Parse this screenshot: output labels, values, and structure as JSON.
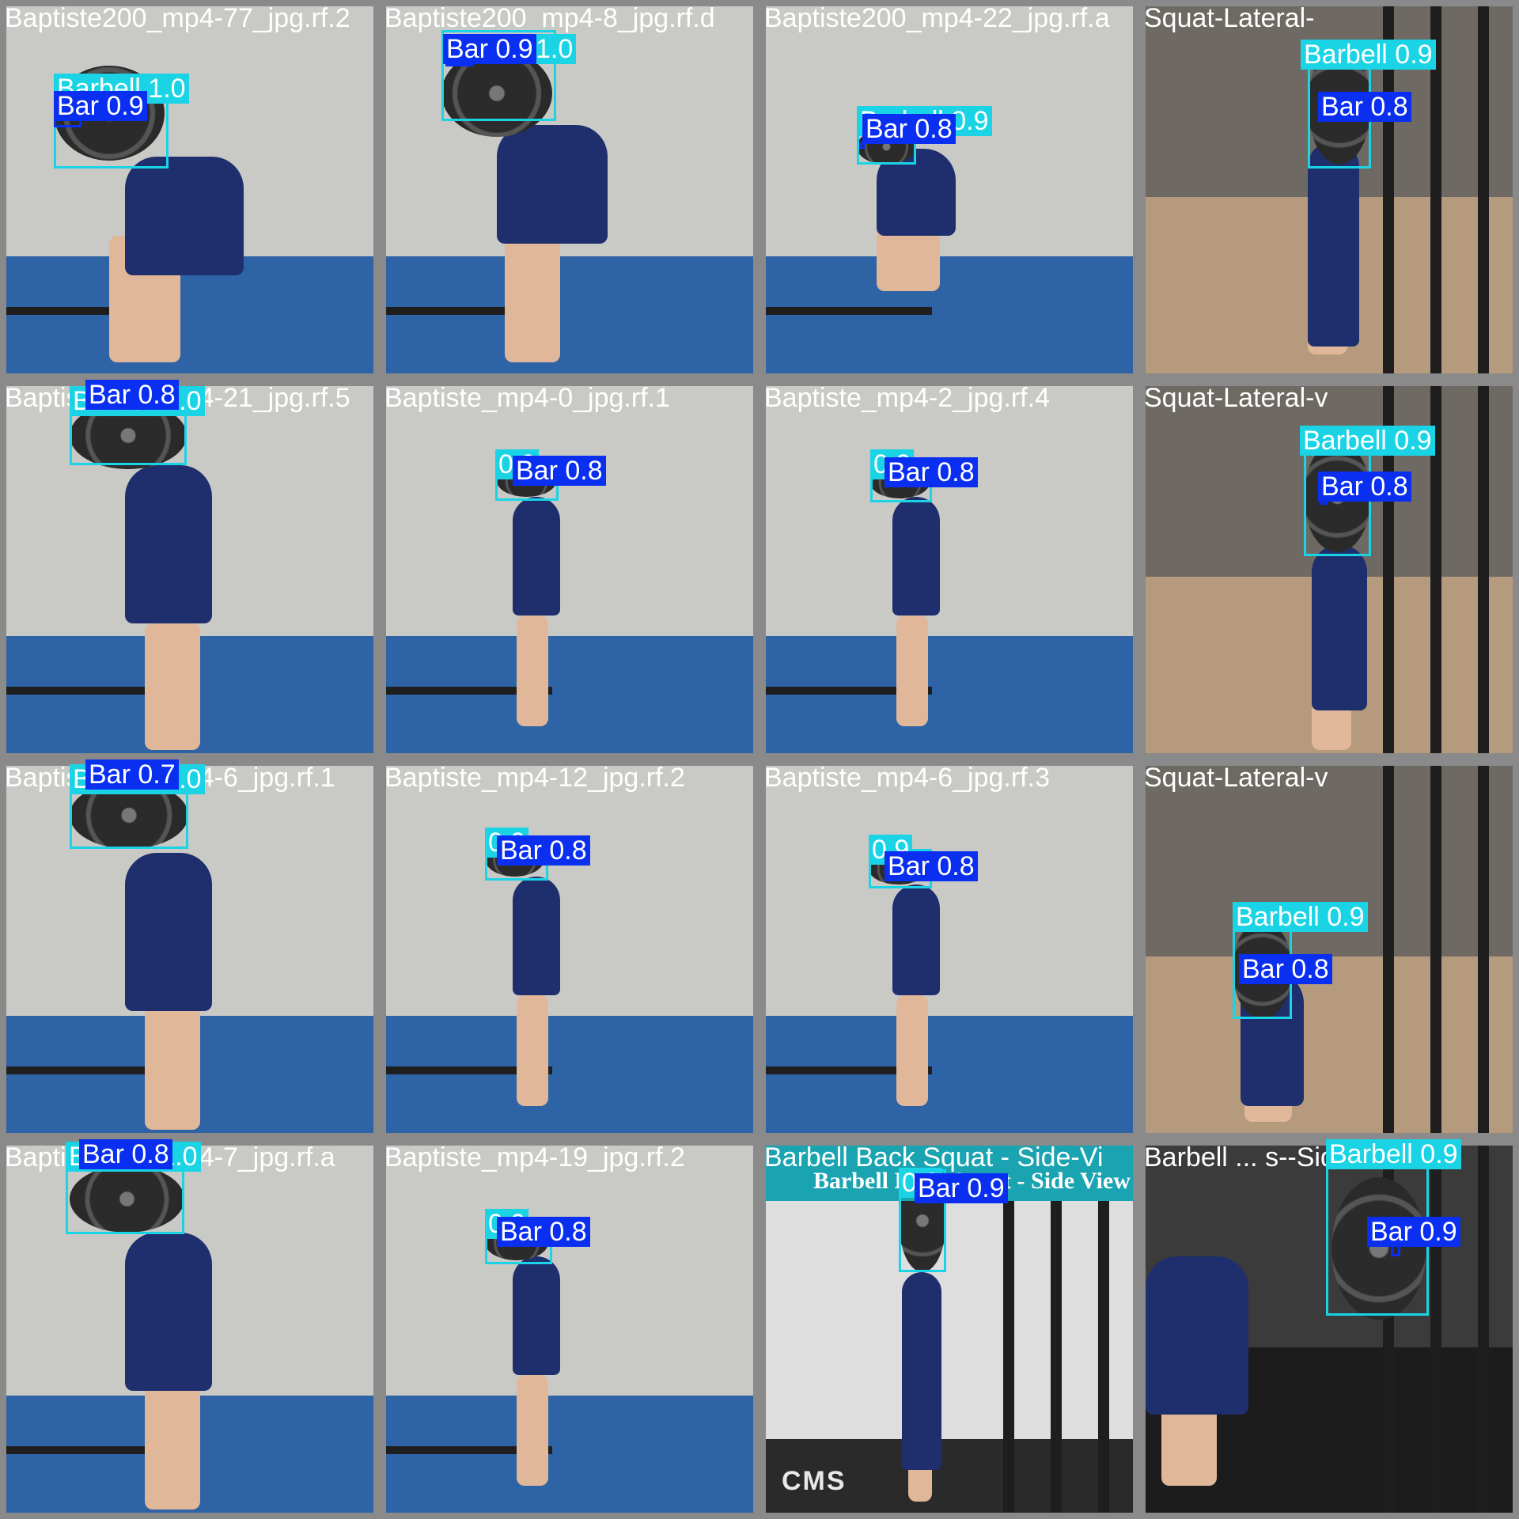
{
  "colors": {
    "barbell_box": "#1ad4e6",
    "bar_box": "#0a2ff0",
    "label_text": "#ffffff",
    "tile_border": "#8a8a8a"
  },
  "tiles": [
    {
      "filename": "Baptiste200_mp4-77_jpg.rf.2",
      "scene": "office-blue-floor",
      "detections": [
        {
          "label": "Barbell 1.0"
        },
        {
          "label": "Bar 0.9"
        }
      ]
    },
    {
      "filename": "Baptiste200_mp4-8_jpg.rf.d",
      "scene": "office-blue-floor",
      "detections": [
        {
          "label": "1.0"
        },
        {
          "label": "Bar 0.9"
        }
      ]
    },
    {
      "filename": "Baptiste200_mp4-22_jpg.rf.a",
      "scene": "office-blue-floor",
      "detections": [
        {
          "label": "Barbell 0.9"
        },
        {
          "label": "Bar 0.8"
        }
      ]
    },
    {
      "filename": "Squat-Lateral-",
      "scene": "gym-tan-floor",
      "detections": [
        {
          "label": "Barbell 0.9"
        },
        {
          "label": "Bar 0.8"
        }
      ]
    },
    {
      "filename": "Baptiste200_mp4-21_jpg.rf.5",
      "scene": "office-blue-floor",
      "detections": [
        {
          "label": "Barbell 1.0"
        },
        {
          "label": "Bar 0.8"
        }
      ]
    },
    {
      "filename": "Baptiste_mp4-0_jpg.rf.1",
      "scene": "office-blue-floor",
      "detections": [
        {
          "label": "0.9"
        },
        {
          "label": "Bar 0.8"
        }
      ]
    },
    {
      "filename": "Baptiste_mp4-2_jpg.rf.4",
      "scene": "office-blue-floor",
      "detections": [
        {
          "label": "0.9"
        },
        {
          "label": "Bar 0.8"
        }
      ]
    },
    {
      "filename": "Squat-Lateral-v",
      "scene": "gym-tan-floor",
      "detections": [
        {
          "label": "Barbell 0.9"
        },
        {
          "label": "Bar 0.8"
        }
      ]
    },
    {
      "filename": "Baptiste200_mp4-6_jpg.rf.1",
      "scene": "office-blue-floor",
      "detections": [
        {
          "label": "Barbell 1.0"
        },
        {
          "label": "Bar 0.7"
        }
      ]
    },
    {
      "filename": "Baptiste_mp4-12_jpg.rf.2",
      "scene": "office-blue-floor",
      "detections": [
        {
          "label": "0.9"
        },
        {
          "label": "Bar 0.8"
        }
      ]
    },
    {
      "filename": "Baptiste_mp4-6_jpg.rf.3",
      "scene": "office-blue-floor",
      "detections": [
        {
          "label": "0.9"
        },
        {
          "label": "Bar 0.8"
        }
      ]
    },
    {
      "filename": "Squat-Lateral-v",
      "scene": "gym-tan-floor",
      "detections": [
        {
          "label": "Barbell 0.9"
        },
        {
          "label": "Bar 0.8"
        }
      ]
    },
    {
      "filename": "Baptiste200_mp4-7_jpg.rf.a",
      "scene": "office-blue-floor",
      "detections": [
        {
          "label": "Barbell 1.0"
        },
        {
          "label": "Bar 0.8"
        }
      ]
    },
    {
      "filename": "Baptiste_mp4-19_jpg.rf.2",
      "scene": "office-blue-floor",
      "detections": [
        {
          "label": "0.9"
        },
        {
          "label": "Bar 0.8"
        }
      ]
    },
    {
      "filename": "Barbell Back Squat - Side-Vi",
      "scene": "gym-white-wall",
      "banner": "Barbell Back Squat - Side View",
      "logo": "CMS",
      "detections": [
        {
          "label": "0.9"
        },
        {
          "label": "Bar 0.9"
        }
      ]
    },
    {
      "filename": "Barbell ... s--Side-V",
      "scene": "gym-dark",
      "detections": [
        {
          "label": "Barbell 0.9"
        },
        {
          "label": "Bar 0.9"
        }
      ]
    }
  ]
}
